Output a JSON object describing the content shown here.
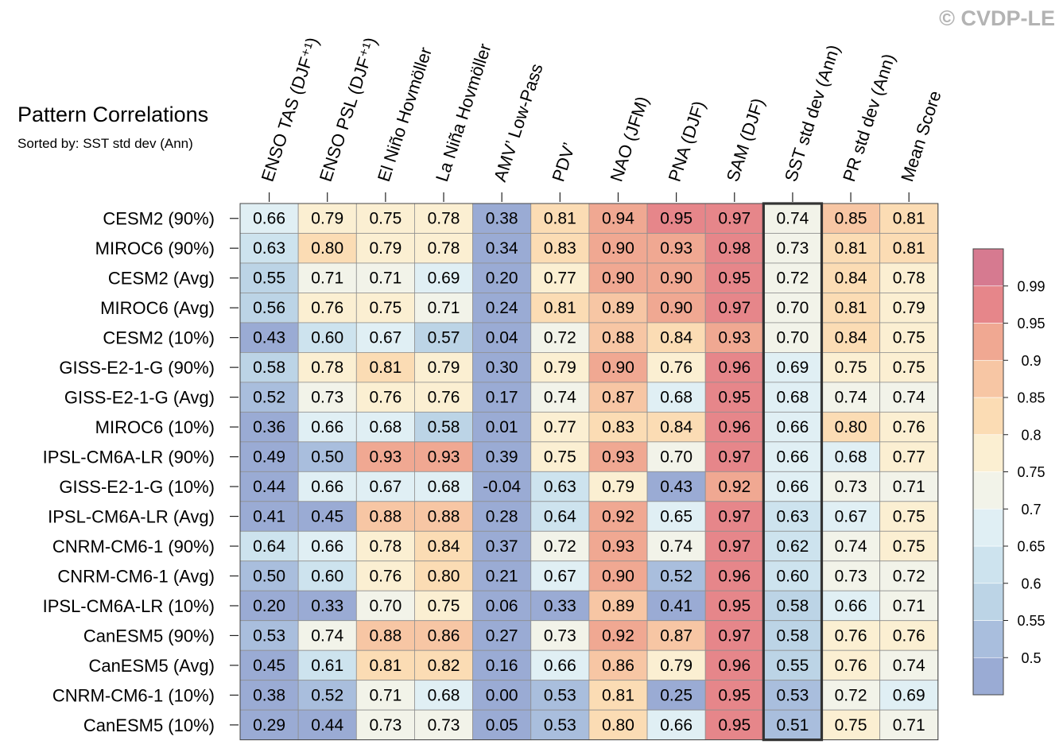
{
  "watermark": "© CVDP-LE",
  "chart_data": {
    "type": "heatmap",
    "title": "Pattern Correlations",
    "subtitle": "Sorted by: SST std dev (Ann)",
    "highlighted_column": "SST std dev (Ann)",
    "columns": [
      "ENSO TAS (DJF⁺¹)",
      "ENSO PSL (DJF⁺¹)",
      "El Niño Hovmöller",
      "La Niña Hovmöller",
      "AMV’ Low-Pass",
      "PDV’",
      "NAO (JFM)",
      "PNA (DJF)",
      "SAM (DJF)",
      "SST std dev (Ann)",
      "PR std dev (Ann)",
      "Mean Score"
    ],
    "rows": [
      "CESM2 (90%)",
      "MIROC6 (90%)",
      "CESM2 (Avg)",
      "MIROC6 (Avg)",
      "CESM2 (10%)",
      "GISS-E2-1-G (90%)",
      "GISS-E2-1-G (Avg)",
      "MIROC6 (10%)",
      "IPSL-CM6A-LR (90%)",
      "GISS-E2-1-G (10%)",
      "IPSL-CM6A-LR (Avg)",
      "CNRM-CM6-1 (90%)",
      "CNRM-CM6-1 (Avg)",
      "IPSL-CM6A-LR (10%)",
      "CanESM5 (90%)",
      "CanESM5 (Avg)",
      "CNRM-CM6-1 (10%)",
      "CanESM5 (10%)"
    ],
    "values": [
      [
        "0.66",
        "0.79",
        "0.75",
        "0.78",
        "0.38",
        "0.81",
        "0.94",
        "0.95",
        "0.97",
        "0.74",
        "0.85",
        "0.81"
      ],
      [
        "0.63",
        "0.80",
        "0.79",
        "0.78",
        "0.34",
        "0.83",
        "0.90",
        "0.93",
        "0.98",
        "0.73",
        "0.81",
        "0.81"
      ],
      [
        "0.55",
        "0.71",
        "0.71",
        "0.69",
        "0.20",
        "0.77",
        "0.90",
        "0.90",
        "0.95",
        "0.72",
        "0.84",
        "0.78"
      ],
      [
        "0.56",
        "0.76",
        "0.75",
        "0.71",
        "0.24",
        "0.81",
        "0.89",
        "0.90",
        "0.97",
        "0.70",
        "0.81",
        "0.79"
      ],
      [
        "0.43",
        "0.60",
        "0.67",
        "0.57",
        "0.04",
        "0.72",
        "0.88",
        "0.84",
        "0.93",
        "0.70",
        "0.84",
        "0.75"
      ],
      [
        "0.58",
        "0.78",
        "0.81",
        "0.79",
        "0.30",
        "0.79",
        "0.90",
        "0.76",
        "0.96",
        "0.69",
        "0.75",
        "0.75"
      ],
      [
        "0.52",
        "0.73",
        "0.76",
        "0.76",
        "0.17",
        "0.74",
        "0.87",
        "0.68",
        "0.95",
        "0.68",
        "0.74",
        "0.74"
      ],
      [
        "0.36",
        "0.66",
        "0.68",
        "0.58",
        "0.01",
        "0.77",
        "0.83",
        "0.84",
        "0.96",
        "0.66",
        "0.80",
        "0.76"
      ],
      [
        "0.49",
        "0.50",
        "0.93",
        "0.93",
        "0.39",
        "0.75",
        "0.93",
        "0.70",
        "0.97",
        "0.66",
        "0.68",
        "0.77"
      ],
      [
        "0.44",
        "0.66",
        "0.67",
        "0.68",
        "-0.04",
        "0.63",
        "0.79",
        "0.43",
        "0.92",
        "0.66",
        "0.73",
        "0.71"
      ],
      [
        "0.41",
        "0.45",
        "0.88",
        "0.88",
        "0.28",
        "0.64",
        "0.92",
        "0.65",
        "0.97",
        "0.63",
        "0.67",
        "0.75"
      ],
      [
        "0.64",
        "0.66",
        "0.78",
        "0.84",
        "0.37",
        "0.72",
        "0.93",
        "0.74",
        "0.97",
        "0.62",
        "0.74",
        "0.75"
      ],
      [
        "0.50",
        "0.60",
        "0.76",
        "0.80",
        "0.21",
        "0.67",
        "0.90",
        "0.52",
        "0.96",
        "0.60",
        "0.73",
        "0.72"
      ],
      [
        "0.20",
        "0.33",
        "0.70",
        "0.75",
        "0.06",
        "0.33",
        "0.89",
        "0.41",
        "0.95",
        "0.58",
        "0.66",
        "0.71"
      ],
      [
        "0.53",
        "0.74",
        "0.88",
        "0.86",
        "0.27",
        "0.73",
        "0.92",
        "0.87",
        "0.97",
        "0.58",
        "0.76",
        "0.76"
      ],
      [
        "0.45",
        "0.61",
        "0.81",
        "0.82",
        "0.16",
        "0.66",
        "0.86",
        "0.79",
        "0.96",
        "0.55",
        "0.76",
        "0.74"
      ],
      [
        "0.38",
        "0.52",
        "0.71",
        "0.68",
        "0.00",
        "0.53",
        "0.81",
        "0.25",
        "0.95",
        "0.53",
        "0.72",
        "0.69"
      ],
      [
        "0.29",
        "0.44",
        "0.73",
        "0.73",
        "0.05",
        "0.53",
        "0.80",
        "0.66",
        "0.95",
        "0.51",
        "0.75",
        "0.71"
      ]
    ],
    "colorbar": {
      "tick_labels": [
        "0.5",
        "0.55",
        "0.6",
        "0.65",
        "0.7",
        "0.75",
        "0.8",
        "0.85",
        "0.9",
        "0.95",
        "0.99"
      ],
      "bins": [
        {
          "min": null,
          "max": 0.5,
          "color": "#9aabd4"
        },
        {
          "min": 0.5,
          "max": 0.55,
          "color": "#a9bedd"
        },
        {
          "min": 0.55,
          "max": 0.6,
          "color": "#bcd4e6"
        },
        {
          "min": 0.6,
          "max": 0.65,
          "color": "#cde3ee"
        },
        {
          "min": 0.65,
          "max": 0.7,
          "color": "#e0eff4"
        },
        {
          "min": 0.7,
          "max": 0.75,
          "color": "#f2f3e9"
        },
        {
          "min": 0.75,
          "max": 0.8,
          "color": "#fbefd2"
        },
        {
          "min": 0.8,
          "max": 0.85,
          "color": "#fbdcb4"
        },
        {
          "min": 0.85,
          "max": 0.9,
          "color": "#f7c6a4"
        },
        {
          "min": 0.9,
          "max": 0.95,
          "color": "#f0a892"
        },
        {
          "min": 0.95,
          "max": 0.99,
          "color": "#e6868a"
        },
        {
          "min": 0.99,
          "max": null,
          "color": "#d67a90"
        }
      ]
    }
  }
}
